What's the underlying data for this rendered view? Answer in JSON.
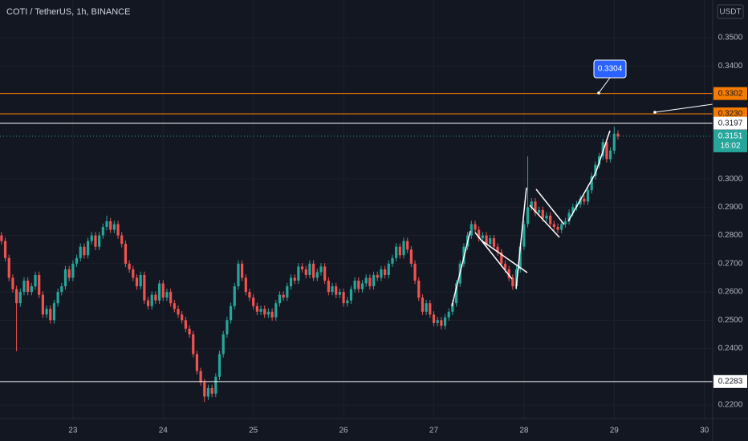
{
  "chart_data": {
    "type": "candlestick",
    "title": "COTI / TetherUS, 1h, BINANCE",
    "currency": "USDT",
    "up_color": "#26a69a",
    "down_color": "#ef5350",
    "grid": true,
    "xlim": [
      4.6,
      194.2
    ],
    "xticks": [
      {
        "value": 24,
        "label": "23"
      },
      {
        "value": 48,
        "label": "24"
      },
      {
        "value": 72,
        "label": "25"
      },
      {
        "value": 96,
        "label": "26"
      },
      {
        "value": 120,
        "label": "27"
      },
      {
        "value": 144,
        "label": "28"
      },
      {
        "value": 168,
        "label": "29"
      },
      {
        "value": 192,
        "label": "30"
      }
    ],
    "ylim": [
      0.2152,
      0.3633
    ],
    "yticks": [
      {
        "value": 0.22,
        "label": "0.2200"
      },
      {
        "value": 0.24,
        "label": "0.2400"
      },
      {
        "value": 0.25,
        "label": "0.2500"
      },
      {
        "value": 0.26,
        "label": "0.2600"
      },
      {
        "value": 0.27,
        "label": "0.2700"
      },
      {
        "value": 0.28,
        "label": "0.2800"
      },
      {
        "value": 0.29,
        "label": "0.2900"
      },
      {
        "value": 0.3,
        "label": "0.3000"
      },
      {
        "value": 0.34,
        "label": "0.3400"
      },
      {
        "value": 0.35,
        "label": "0.3500"
      }
    ],
    "price_lines": [
      {
        "value": 0.3302,
        "label": "0.3302",
        "color": "#f57c00"
      },
      {
        "value": 0.323,
        "label": "0.3230",
        "color": "#f57c00"
      },
      {
        "value": 0.3197,
        "label": "0.3197",
        "color": "#ffffff"
      },
      {
        "value": 0.2283,
        "label": "0.2283",
        "color": "#ffffff"
      }
    ],
    "last_price": {
      "value": 0.3151,
      "label": "0.3151",
      "countdown": "16:02",
      "color": "#26a69a"
    },
    "callout": {
      "value": 0.3304,
      "label": "0.3304",
      "color": "#2962ff"
    },
    "x": [
      5,
      6,
      7,
      8,
      9,
      10,
      11,
      12,
      13,
      14,
      15,
      16,
      17,
      18,
      19,
      20,
      21,
      22,
      23,
      24,
      25,
      26,
      27,
      28,
      29,
      30,
      31,
      32,
      33,
      34,
      35,
      36,
      37,
      38,
      39,
      40,
      41,
      42,
      43,
      44,
      45,
      46,
      47,
      48,
      49,
      50,
      51,
      52,
      53,
      54,
      55,
      56,
      57,
      58,
      59,
      60,
      61,
      62,
      63,
      64,
      65,
      66,
      67,
      68,
      69,
      70,
      71,
      72,
      73,
      74,
      75,
      76,
      77,
      78,
      79,
      80,
      81,
      82,
      83,
      84,
      85,
      86,
      87,
      88,
      89,
      90,
      91,
      92,
      93,
      94,
      95,
      96,
      97,
      98,
      99,
      100,
      101,
      102,
      103,
      104,
      105,
      106,
      107,
      108,
      109,
      110,
      111,
      112,
      113,
      114,
      115,
      116,
      117,
      118,
      119,
      120,
      121,
      122,
      123,
      124,
      125,
      126,
      127,
      128,
      129,
      130,
      131,
      132,
      133,
      134,
      135,
      136,
      137,
      138,
      139,
      140,
      141,
      142,
      143,
      144,
      145,
      146,
      147,
      148,
      149,
      150,
      151,
      152,
      153,
      154,
      155,
      156,
      157,
      158,
      159,
      160,
      161,
      162,
      163,
      164,
      165,
      166,
      167,
      168,
      169
    ],
    "open": [
      0.28,
      0.278,
      0.272,
      0.265,
      0.261,
      0.256,
      0.26,
      0.264,
      0.26,
      0.262,
      0.266,
      0.259,
      0.252,
      0.254,
      0.25,
      0.256,
      0.26,
      0.262,
      0.268,
      0.265,
      0.27,
      0.272,
      0.276,
      0.273,
      0.278,
      0.28,
      0.276,
      0.28,
      0.283,
      0.285,
      0.282,
      0.284,
      0.28,
      0.277,
      0.27,
      0.268,
      0.265,
      0.262,
      0.266,
      0.257,
      0.255,
      0.259,
      0.257,
      0.263,
      0.258,
      0.26,
      0.256,
      0.254,
      0.252,
      0.25,
      0.247,
      0.245,
      0.238,
      0.232,
      0.228,
      0.223,
      0.226,
      0.224,
      0.23,
      0.238,
      0.245,
      0.25,
      0.255,
      0.262,
      0.27,
      0.265,
      0.26,
      0.258,
      0.255,
      0.253,
      0.254,
      0.252,
      0.253,
      0.251,
      0.256,
      0.259,
      0.258,
      0.262,
      0.265,
      0.264,
      0.269,
      0.268,
      0.266,
      0.27,
      0.265,
      0.267,
      0.269,
      0.264,
      0.26,
      0.262,
      0.259,
      0.26,
      0.256,
      0.257,
      0.261,
      0.264,
      0.261,
      0.263,
      0.265,
      0.262,
      0.266,
      0.265,
      0.268,
      0.266,
      0.27,
      0.272,
      0.276,
      0.273,
      0.278,
      0.275,
      0.27,
      0.264,
      0.258,
      0.253,
      0.256,
      0.252,
      0.249,
      0.25,
      0.248,
      0.251,
      0.253,
      0.256,
      0.263,
      0.27,
      0.276,
      0.28,
      0.284,
      0.282,
      0.279,
      0.28,
      0.277,
      0.279,
      0.276,
      0.274,
      0.27,
      0.268,
      0.265,
      0.262,
      0.268,
      0.276,
      0.284,
      0.29,
      0.292,
      0.288,
      0.289,
      0.286,
      0.287,
      0.284,
      0.283,
      0.282,
      0.284,
      0.285,
      0.288,
      0.29,
      0.291,
      0.293,
      0.292,
      0.296,
      0.301,
      0.305,
      0.308,
      0.313,
      0.307,
      0.31,
      0.316
    ],
    "high": [
      0.2812,
      0.2792,
      0.2732,
      0.2662,
      0.2622,
      0.2612,
      0.2652,
      0.2652,
      0.2632,
      0.2672,
      0.2672,
      0.2602,
      0.2552,
      0.2552,
      0.2572,
      0.2612,
      0.2632,
      0.2692,
      0.2692,
      0.2712,
      0.2732,
      0.2772,
      0.2772,
      0.2792,
      0.2812,
      0.2812,
      0.2812,
      0.2842,
      0.287,
      0.2862,
      0.2852,
      0.2852,
      0.2812,
      0.2782,
      0.2712,
      0.2692,
      0.2662,
      0.2672,
      0.2672,
      0.2582,
      0.2602,
      0.2602,
      0.2642,
      0.2642,
      0.2612,
      0.2612,
      0.2572,
      0.2552,
      0.2532,
      0.2512,
      0.2482,
      0.2462,
      0.2392,
      0.2332,
      0.2292,
      0.2272,
      0.2272,
      0.2312,
      0.2392,
      0.2462,
      0.2512,
      0.2562,
      0.2632,
      0.2712,
      0.2712,
      0.2662,
      0.2612,
      0.2592,
      0.2562,
      0.2552,
      0.2552,
      0.2542,
      0.2542,
      0.2572,
      0.2602,
      0.2602,
      0.2632,
      0.2662,
      0.2662,
      0.2702,
      0.2702,
      0.2692,
      0.2712,
      0.2712,
      0.2682,
      0.2702,
      0.2702,
      0.2652,
      0.2632,
      0.2632,
      0.2612,
      0.2612,
      0.2582,
      0.2622,
      0.2652,
      0.2652,
      0.2642,
      0.2662,
      0.2662,
      0.2672,
      0.2672,
      0.2692,
      0.2692,
      0.2712,
      0.2732,
      0.2772,
      0.2772,
      0.2792,
      0.2792,
      0.2762,
      0.2712,
      0.2652,
      0.2592,
      0.2572,
      0.2572,
      0.2532,
      0.2512,
      0.2512,
      0.2522,
      0.2542,
      0.2572,
      0.2642,
      0.2712,
      0.2772,
      0.2812,
      0.2852,
      0.2852,
      0.2832,
      0.2812,
      0.2812,
      0.2802,
      0.2802,
      0.2772,
      0.2752,
      0.2712,
      0.2692,
      0.2662,
      0.2692,
      0.2772,
      0.2852,
      0.308,
      0.2932,
      0.2932,
      0.2902,
      0.2902,
      0.2882,
      0.2882,
      0.2852,
      0.2842,
      0.2852,
      0.2862,
      0.2892,
      0.2912,
      0.2922,
      0.2942,
      0.2942,
      0.2972,
      0.3022,
      0.3062,
      0.3092,
      0.3142,
      0.3142,
      0.3112,
      0.3185,
      0.3172
    ],
    "low": [
      0.2768,
      0.2708,
      0.2638,
      0.2598,
      0.239,
      0.2548,
      0.2588,
      0.2588,
      0.2588,
      0.2608,
      0.2578,
      0.2508,
      0.2508,
      0.2488,
      0.2488,
      0.2548,
      0.2588,
      0.2608,
      0.2638,
      0.2638,
      0.2688,
      0.2708,
      0.2718,
      0.2718,
      0.2768,
      0.2748,
      0.2748,
      0.2788,
      0.2818,
      0.2808,
      0.2808,
      0.2788,
      0.2758,
      0.2688,
      0.2668,
      0.2638,
      0.2608,
      0.2608,
      0.2558,
      0.2538,
      0.2538,
      0.2558,
      0.2558,
      0.2568,
      0.2568,
      0.2548,
      0.2528,
      0.2508,
      0.2488,
      0.2458,
      0.2438,
      0.2368,
      0.2308,
      0.2268,
      0.221,
      0.2218,
      0.2228,
      0.2228,
      0.2288,
      0.2368,
      0.2438,
      0.2488,
      0.2538,
      0.2608,
      0.2638,
      0.2588,
      0.2568,
      0.2538,
      0.2518,
      0.2518,
      0.2508,
      0.2508,
      0.2498,
      0.2498,
      0.2548,
      0.2568,
      0.2568,
      0.2608,
      0.2628,
      0.2628,
      0.2668,
      0.2648,
      0.2648,
      0.2638,
      0.2638,
      0.2658,
      0.2628,
      0.2588,
      0.2588,
      0.2578,
      0.2578,
      0.2548,
      0.2548,
      0.2558,
      0.2598,
      0.2598,
      0.2598,
      0.2618,
      0.2608,
      0.2608,
      0.2638,
      0.2638,
      0.2648,
      0.2648,
      0.2688,
      0.2708,
      0.2718,
      0.2718,
      0.2738,
      0.2688,
      0.2628,
      0.2568,
      0.2518,
      0.2518,
      0.2508,
      0.2478,
      0.2478,
      0.2468,
      0.2468,
      0.2498,
      0.2518,
      0.2548,
      0.2618,
      0.2688,
      0.2748,
      0.2788,
      0.2808,
      0.2778,
      0.2778,
      0.2758,
      0.2758,
      0.2748,
      0.2728,
      0.2688,
      0.2668,
      0.2638,
      0.2608,
      0.2608,
      0.2668,
      0.2748,
      0.2828,
      0.2888,
      0.2868,
      0.2868,
      0.2848,
      0.2848,
      0.2828,
      0.2818,
      0.2808,
      0.2808,
      0.2828,
      0.2838,
      0.2868,
      0.2888,
      0.2898,
      0.2908,
      0.2908,
      0.2948,
      0.2998,
      0.3038,
      0.3068,
      0.3058,
      0.3058,
      0.3088,
      0.3139
    ],
    "close": [
      0.278,
      0.272,
      0.265,
      0.261,
      0.256,
      0.26,
      0.264,
      0.26,
      0.262,
      0.266,
      0.259,
      0.252,
      0.254,
      0.25,
      0.256,
      0.26,
      0.262,
      0.268,
      0.265,
      0.27,
      0.272,
      0.276,
      0.273,
      0.278,
      0.28,
      0.276,
      0.28,
      0.283,
      0.285,
      0.282,
      0.284,
      0.28,
      0.277,
      0.27,
      0.268,
      0.265,
      0.262,
      0.266,
      0.257,
      0.255,
      0.259,
      0.257,
      0.263,
      0.258,
      0.26,
      0.256,
      0.254,
      0.252,
      0.25,
      0.247,
      0.245,
      0.238,
      0.232,
      0.228,
      0.223,
      0.226,
      0.224,
      0.23,
      0.238,
      0.245,
      0.25,
      0.255,
      0.262,
      0.27,
      0.265,
      0.26,
      0.258,
      0.255,
      0.253,
      0.254,
      0.252,
      0.253,
      0.251,
      0.256,
      0.259,
      0.258,
      0.262,
      0.265,
      0.264,
      0.269,
      0.268,
      0.266,
      0.27,
      0.265,
      0.267,
      0.269,
      0.264,
      0.26,
      0.262,
      0.259,
      0.26,
      0.256,
      0.257,
      0.261,
      0.264,
      0.261,
      0.263,
      0.265,
      0.262,
      0.266,
      0.265,
      0.268,
      0.266,
      0.27,
      0.272,
      0.276,
      0.273,
      0.278,
      0.275,
      0.27,
      0.264,
      0.258,
      0.253,
      0.256,
      0.252,
      0.249,
      0.25,
      0.248,
      0.251,
      0.253,
      0.256,
      0.263,
      0.27,
      0.276,
      0.28,
      0.284,
      0.282,
      0.279,
      0.28,
      0.277,
      0.279,
      0.276,
      0.274,
      0.27,
      0.268,
      0.265,
      0.262,
      0.268,
      0.276,
      0.284,
      0.29,
      0.292,
      0.288,
      0.289,
      0.286,
      0.287,
      0.284,
      0.283,
      0.282,
      0.284,
      0.285,
      0.288,
      0.29,
      0.291,
      0.293,
      0.292,
      0.296,
      0.301,
      0.305,
      0.308,
      0.313,
      0.307,
      0.31,
      0.316,
      0.3151
    ]
  }
}
